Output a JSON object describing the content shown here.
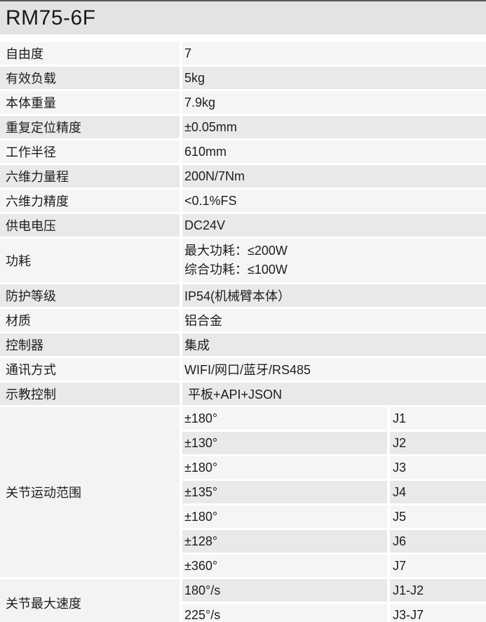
{
  "header": {
    "title": "RM75-6F"
  },
  "colors": {
    "header_bg": "#e3e3e3",
    "row_light": "#f5f5f5",
    "row_dark": "#e9e9e9",
    "merged_label_bg": "#f3f3f3",
    "divider": "#ffffff",
    "top_line": "#575757",
    "text": "#1d1d1d"
  },
  "spec_rows": [
    {
      "label": "自由度",
      "value": "7"
    },
    {
      "label": "有效负载",
      "value": "5kg"
    },
    {
      "label": "本体重量",
      "value": "7.9kg"
    },
    {
      "label": "重复定位精度",
      "value": "±0.05mm"
    },
    {
      "label": "工作半径",
      "value": "610mm"
    },
    {
      "label": "六维力量程",
      "value": "200N/7Nm"
    },
    {
      "label": "六维力精度",
      "value": "<0.1%FS"
    },
    {
      "label": "供电电压",
      "value": "DC24V"
    },
    {
      "label": "功耗",
      "value": "最大功耗：≤200W",
      "value2": "综合功耗：≤100W"
    },
    {
      "label": "防护等级",
      "value": "IP54(机械臂本体）"
    },
    {
      "label": "材质",
      "value": "铝合金"
    },
    {
      "label": "控制器",
      "value": "集成"
    },
    {
      "label": "通讯方式",
      "value": "WIFI/网口/蓝牙/RS485"
    },
    {
      "label": "示教控制",
      "value": " 平板+API+JSON"
    }
  ],
  "joint_range": {
    "label": "关节运动范围",
    "entries": [
      {
        "value": "±180°",
        "joint": "J1"
      },
      {
        "value": "±130°",
        "joint": "J2"
      },
      {
        "value": "±180°",
        "joint": "J3"
      },
      {
        "value": "±135°",
        "joint": "J4"
      },
      {
        "value": "±180°",
        "joint": "J5"
      },
      {
        "value": "±128°",
        "joint": "J6"
      },
      {
        "value": "±360°",
        "joint": "J7"
      }
    ]
  },
  "max_speed": {
    "label": "关节最大速度",
    "entries": [
      {
        "value": "180°/s",
        "joint": "J1-J2"
      },
      {
        "value": "225°/s",
        "joint": "J3-J7"
      }
    ]
  }
}
